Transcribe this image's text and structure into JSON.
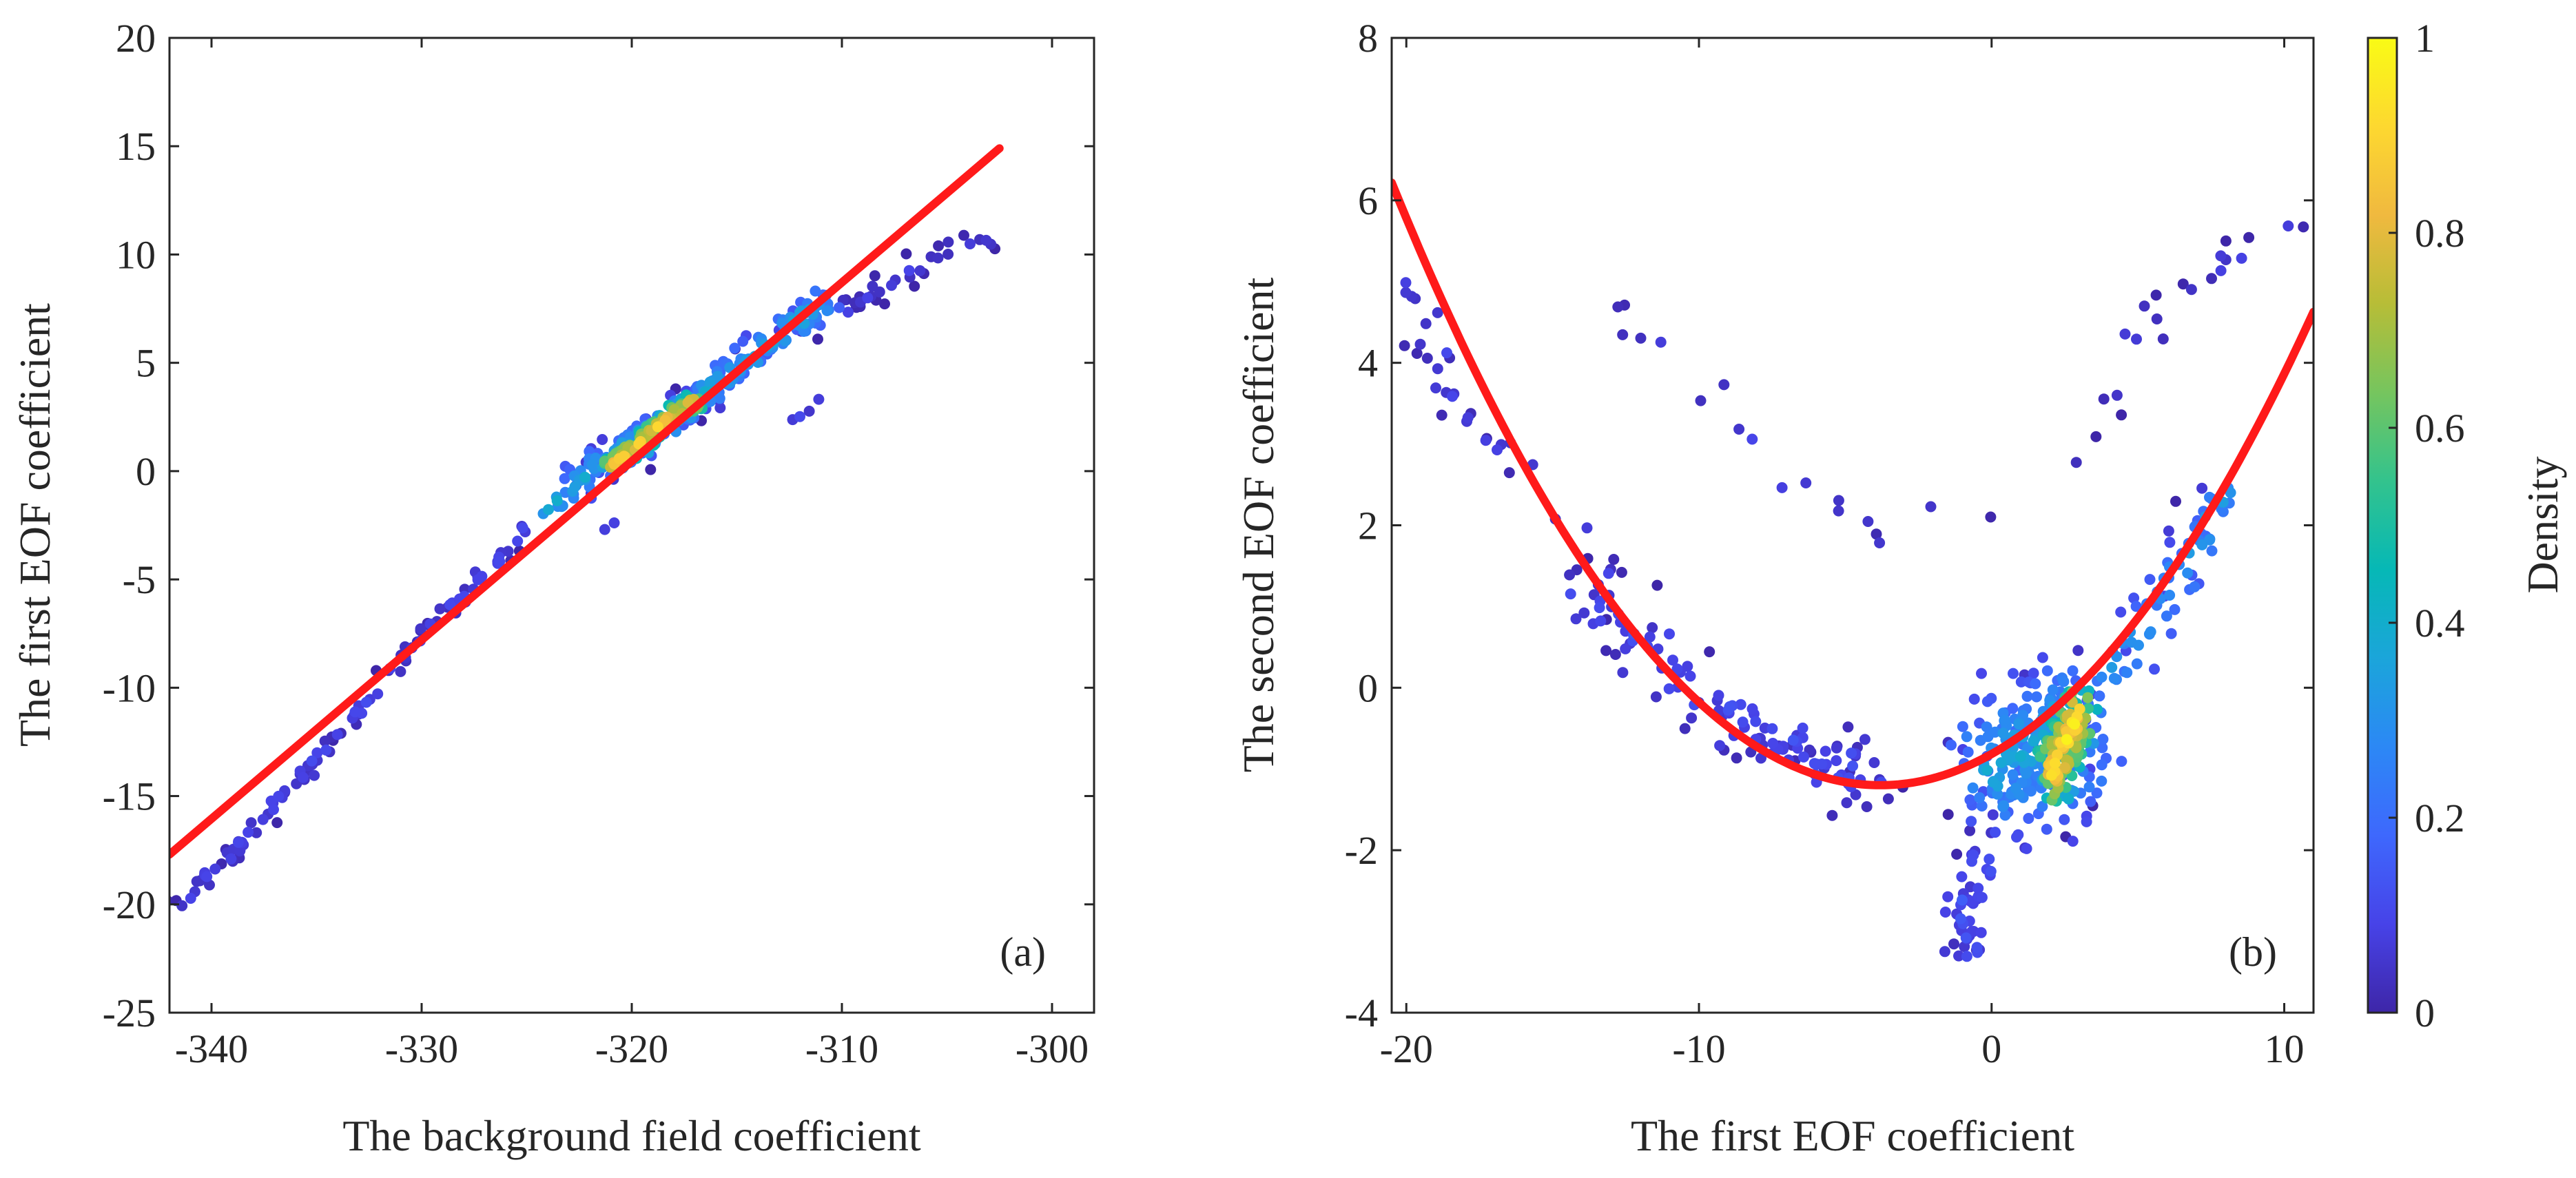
{
  "chart_data": [
    {
      "panel": "(a)",
      "type": "scatter",
      "xlabel": "The background field coefficient",
      "ylabel": "The first EOF coefficient",
      "xlim": [
        -342,
        -298
      ],
      "ylim": [
        -25,
        20
      ],
      "xticks": [
        -340,
        -330,
        -320,
        -310,
        -300
      ],
      "yticks": [
        -25,
        -20,
        -15,
        -10,
        -5,
        0,
        5,
        10,
        15,
        20
      ],
      "fit_line": {
        "color": "#ff1a1a",
        "x": [
          -342,
          -302.5
        ],
        "y": [
          -17.7,
          14.9
        ]
      },
      "scatter_clusters": [
        {
          "x": [
            -342.0,
            -341.0,
            -340.0,
            -339.0,
            -338.0,
            -337.0,
            -336.0,
            -335.0,
            -334.0,
            -333.0,
            -332.0,
            -331.0,
            -330.0,
            -329.0,
            -328.0,
            -327.0,
            -326.0,
            -325.0
          ],
          "y": [
            -20.3,
            -19.6,
            -18.6,
            -17.8,
            -16.6,
            -15.4,
            -14.4,
            -13.2,
            -12.2,
            -11.0,
            -9.8,
            -8.8,
            -7.6,
            -6.8,
            -5.6,
            -4.6,
            -3.6,
            -2.6
          ],
          "density": 0.08,
          "spread": [
            0.5,
            0.35
          ],
          "count": 120
        },
        {
          "x": [
            -324.0,
            -322.0,
            -320.0,
            -318.0,
            -316.0,
            -314.0,
            -312.0,
            -311.0
          ],
          "y": [
            -1.8,
            0.0,
            1.2,
            2.6,
            4.0,
            5.5,
            7.0,
            7.8
          ],
          "density": 0.35,
          "spread": [
            1.0,
            0.7
          ],
          "count": 240
        },
        {
          "x": [
            -321.0,
            -320.0,
            -319.0,
            -318.0,
            -317.0
          ],
          "y": [
            0.2,
            1.0,
            1.8,
            2.6,
            3.2
          ],
          "density": 0.8,
          "spread": [
            0.7,
            0.55
          ],
          "count": 140
        },
        {
          "x": [
            -310.0,
            -308.0,
            -306.0,
            -304.0,
            -303.0
          ],
          "y": [
            7.5,
            8.5,
            9.5,
            10.5,
            11.0
          ],
          "density": 0.06,
          "spread": [
            0.8,
            0.6
          ],
          "count": 35
        },
        {
          "x": [
            -322.0,
            -312.0,
            -310.5
          ],
          "y": [
            -3.0,
            2.5,
            4.0
          ],
          "density": 0.1,
          "spread": [
            0.2,
            0.3
          ],
          "count": 6
        }
      ]
    },
    {
      "panel": "(b)",
      "type": "scatter",
      "xlabel": "The first EOF coefficient",
      "ylabel": "The second EOF coefficient",
      "xlim": [
        -20.5,
        11
      ],
      "ylim": [
        -4,
        8
      ],
      "xticks": [
        -20,
        -10,
        0,
        10
      ],
      "yticks": [
        -4,
        -2,
        0,
        2,
        4,
        6,
        8
      ],
      "fit_curve": {
        "color": "#ff1a1a",
        "vertex_x": -3.8,
        "vertex_y": -1.2,
        "a": 0.0266,
        "x_range": [
          -20.5,
          11
        ]
      },
      "scatter_clusters": [
        {
          "x": [
            -20.0,
            -19.0,
            -18.0,
            -16.0,
            -14.0,
            -13.0,
            -12.0
          ],
          "y": [
            5.0,
            4.2,
            3.5,
            2.6,
            1.8,
            1.2,
            0.8
          ],
          "density": 0.08,
          "spread": [
            0.7,
            0.5
          ],
          "count": 40
        },
        {
          "x": [
            -14.0,
            -12.0,
            -10.0,
            -8.0,
            -6.0,
            -4.0
          ],
          "y": [
            1.2,
            0.6,
            -0.2,
            -0.5,
            -0.9,
            -1.1
          ],
          "density": 0.1,
          "spread": [
            1.0,
            0.45
          ],
          "count": 120
        },
        {
          "x": [
            0.0,
            1.0,
            2.0,
            3.0
          ],
          "y": [
            -1.0,
            -0.8,
            -0.7,
            -0.6
          ],
          "density": 0.35,
          "spread": [
            1.5,
            0.9
          ],
          "count": 260
        },
        {
          "x": [
            2.0,
            2.5,
            3.0
          ],
          "y": [
            -1.1,
            -0.7,
            -0.3
          ],
          "density": 0.85,
          "spread": [
            0.7,
            0.55
          ],
          "count": 160
        },
        {
          "x": [
            4.0,
            5.5,
            7.0,
            8.0
          ],
          "y": [
            0.2,
            0.9,
            1.7,
            2.4
          ],
          "density": 0.3,
          "spread": [
            0.8,
            0.45
          ],
          "count": 70
        },
        {
          "x": [
            -1.0,
            -1.0,
            0.0
          ],
          "y": [
            -2.5,
            -3.2,
            -2.0
          ],
          "density": 0.12,
          "spread": [
            0.8,
            0.4
          ],
          "count": 45
        },
        {
          "x": [
            -13.0,
            -10.0,
            -7.0,
            -3.0,
            3.0,
            5.0,
            7.0,
            9.0,
            10.5
          ],
          "y": [
            4.7,
            3.8,
            2.6,
            1.9,
            3.0,
            4.3,
            5.0,
            5.5,
            6.0
          ],
          "density": 0.06,
          "spread": [
            0.6,
            0.3
          ],
          "count": 40
        }
      ]
    }
  ],
  "colorbar": {
    "label": "Density",
    "ticks": [
      0,
      0.2,
      0.4,
      0.6,
      0.8,
      1
    ],
    "colormap": [
      "#3e26a8",
      "#4743e8",
      "#3e68fd",
      "#2c88f5",
      "#1ba5da",
      "#06b8b6",
      "#33c38d",
      "#76c55e",
      "#b7bd37",
      "#f0b93f",
      "#fdd830",
      "#f9fb15"
    ]
  }
}
